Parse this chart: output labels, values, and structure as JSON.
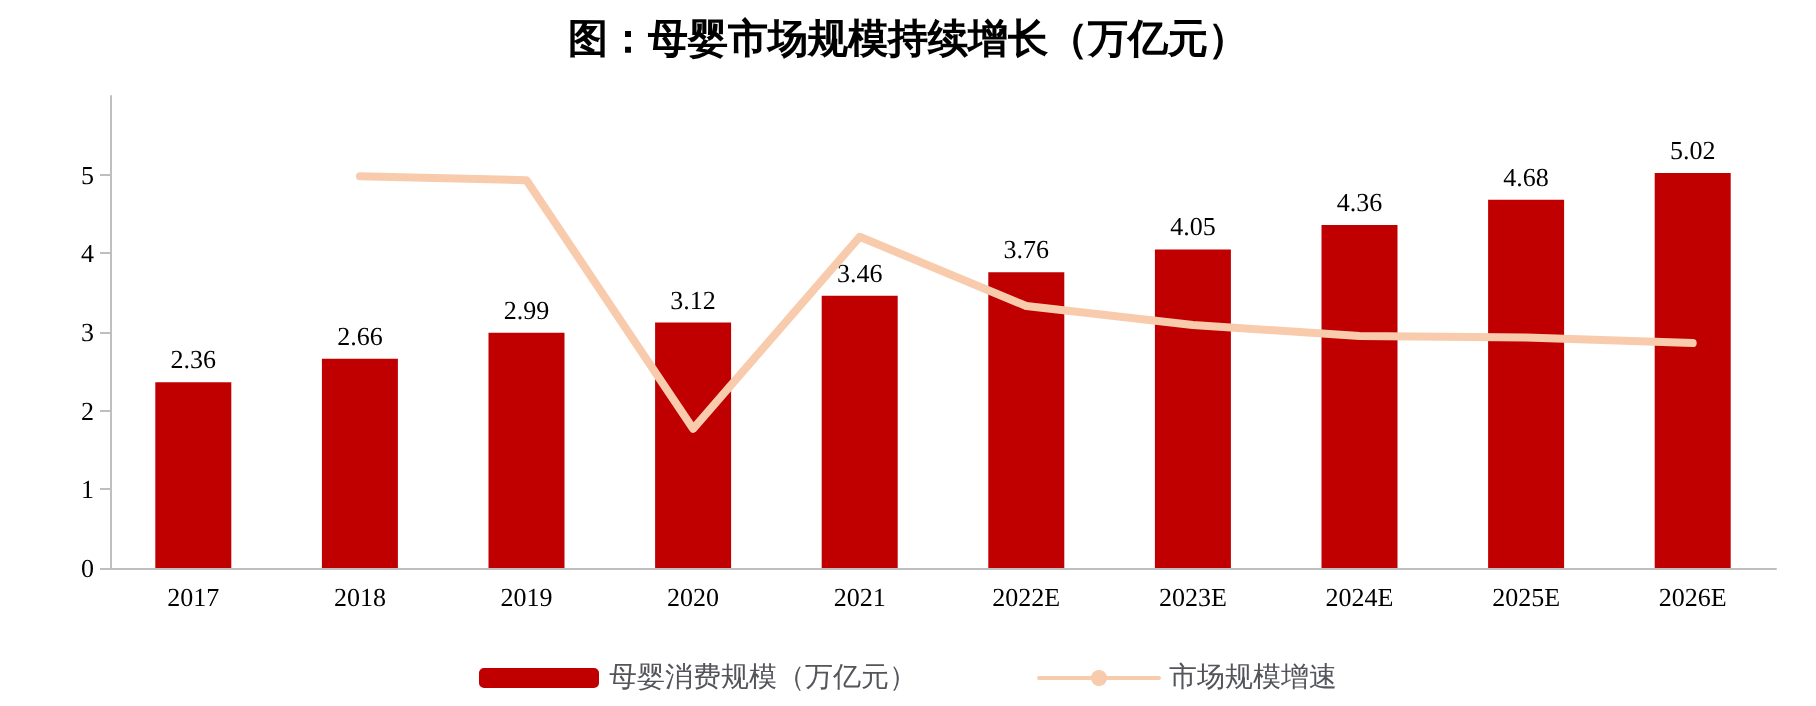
{
  "chart_data": {
    "type": "bar",
    "title": "图：母婴市场规模持续增长（万亿元）",
    "categories": [
      "2017",
      "2018",
      "2019",
      "2020",
      "2021",
      "2022E",
      "2023E",
      "2024E",
      "2025E",
      "2026E"
    ],
    "series": [
      {
        "name": "母婴消费规模（万亿元）",
        "color": "#c00000",
        "values": [
          2.36,
          2.66,
          2.99,
          3.12,
          3.46,
          3.76,
          4.05,
          4.36,
          4.68,
          5.02
        ],
        "data_labels": true
      },
      {
        "name": "市场规模增速",
        "type": "line",
        "color": "#f8cbad",
        "values": [
          null,
          4.98,
          4.93,
          1.77,
          4.21,
          3.33,
          3.09,
          2.95,
          2.93,
          2.86
        ],
        "marker": "none"
      }
    ],
    "ylim": [
      0,
      6
    ],
    "yticks": [
      0,
      1,
      2,
      3,
      4,
      5
    ],
    "grid": false,
    "legend": "bottom"
  }
}
